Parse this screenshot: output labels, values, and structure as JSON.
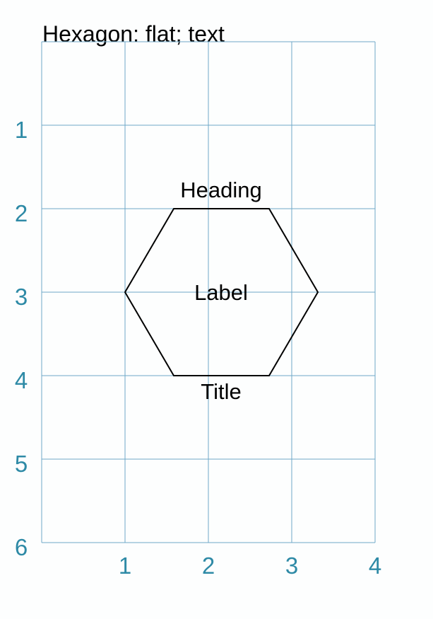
{
  "diagram": {
    "title": "Hexagon: flat; text",
    "x_tick_labels": [
      "1",
      "2",
      "3",
      "4"
    ],
    "y_tick_labels": [
      "1",
      "2",
      "3",
      "4",
      "5",
      "6"
    ],
    "grid": true,
    "x_range": [
      0,
      4
    ],
    "y_range": [
      0,
      6
    ],
    "colors": {
      "grid": "#6fa8c8",
      "tick_label": "#2e8aa6",
      "shape_stroke": "#000000",
      "text": "#000000"
    },
    "hexagon": {
      "orientation": "flat",
      "center": [
        2.17,
        3
      ],
      "vertices": [
        [
          1.58,
          2
        ],
        [
          2.75,
          2
        ],
        [
          3.33,
          3
        ],
        [
          2.75,
          4
        ],
        [
          1.58,
          4
        ],
        [
          1,
          3
        ]
      ],
      "label": "Label",
      "top_text": "Heading",
      "bottom_text": "Title"
    }
  }
}
